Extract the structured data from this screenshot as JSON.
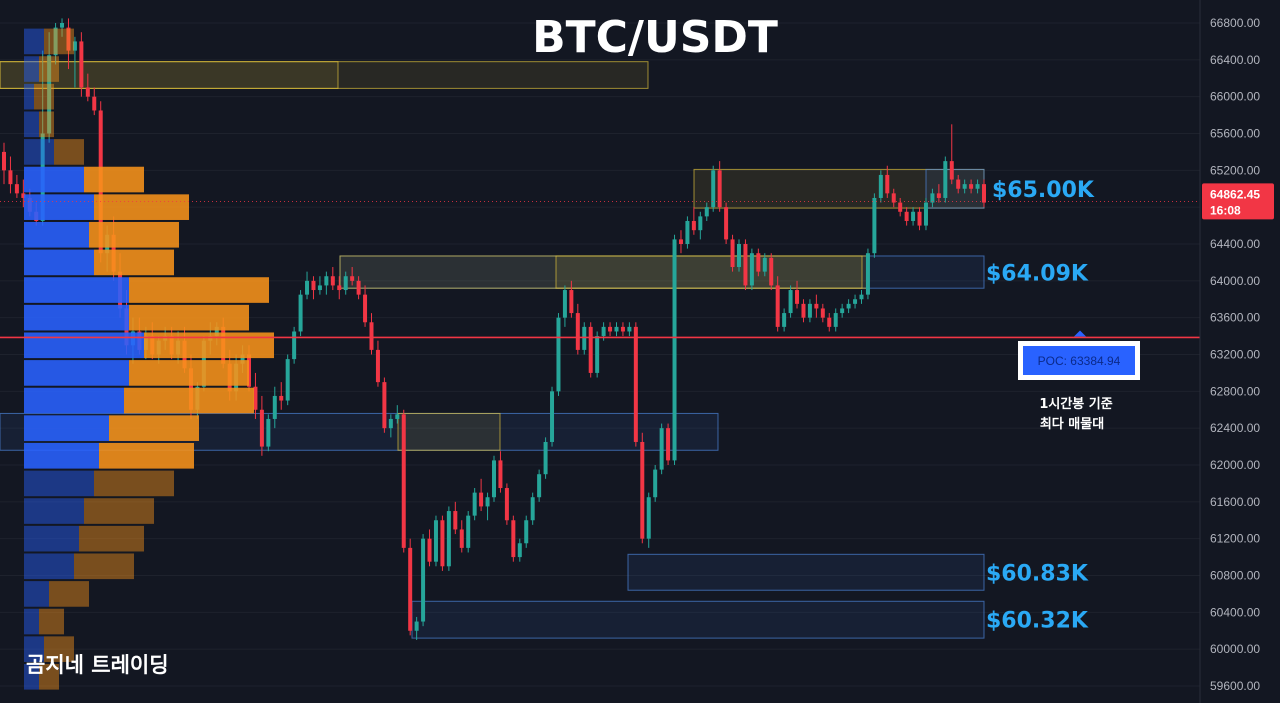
{
  "chart_data": {
    "type": "candlestick",
    "title": "BTC/USDT",
    "brand": "곰지네 트레이딩",
    "yaxis": {
      "ylim": [
        59500,
        66950
      ],
      "ticks": [
        "66800.00",
        "66400.00",
        "66000.00",
        "65600.00",
        "65200.00",
        "64800.00",
        "64400.00",
        "64000.00",
        "63600.00",
        "63200.00",
        "62800.00",
        "62400.00",
        "62000.00",
        "61600.00",
        "61200.00",
        "60800.00",
        "60400.00",
        "60000.00",
        "59600.00"
      ]
    },
    "current_price": {
      "value": "64862.45",
      "countdown": "16:08",
      "color": "#f23645"
    },
    "poc": {
      "label": "POC: 63384.94",
      "value": 63384.94,
      "note_line1": "1시간봉 기준",
      "note_line2": "최다 매물대",
      "line_color": "#f23645"
    },
    "levels": [
      {
        "label": "$65.00K",
        "value": 65000
      },
      {
        "label": "$64.09K",
        "value": 64090
      },
      {
        "label": "$60.83K",
        "value": 60830
      },
      {
        "label": "$60.32K",
        "value": 60320
      }
    ],
    "volume_profile": {
      "bin_size": 300,
      "up_color": "#2962ff",
      "down_color": "#f7931a",
      "bins": [
        {
          "low": 66450,
          "high": 66750,
          "up": 20,
          "down": 30
        },
        {
          "low": 66150,
          "high": 66450,
          "up": 15,
          "down": 20
        },
        {
          "low": 65850,
          "high": 66150,
          "up": 10,
          "down": 20
        },
        {
          "low": 65550,
          "high": 65850,
          "up": 15,
          "down": 15
        },
        {
          "low": 65250,
          "high": 65550,
          "up": 30,
          "down": 30
        },
        {
          "low": 64950,
          "high": 65250,
          "up": 60,
          "down": 60
        },
        {
          "low": 64650,
          "high": 64950,
          "up": 70,
          "down": 95
        },
        {
          "low": 64350,
          "high": 64650,
          "up": 65,
          "down": 90
        },
        {
          "low": 64050,
          "high": 64350,
          "up": 70,
          "down": 80
        },
        {
          "low": 63750,
          "high": 64050,
          "up": 105,
          "down": 140
        },
        {
          "low": 63450,
          "high": 63750,
          "up": 105,
          "down": 120
        },
        {
          "low": 63150,
          "high": 63450,
          "up": 120,
          "down": 130
        },
        {
          "low": 62850,
          "high": 63150,
          "up": 105,
          "down": 120
        },
        {
          "low": 62550,
          "high": 62850,
          "up": 100,
          "down": 130
        },
        {
          "low": 62250,
          "high": 62550,
          "up": 85,
          "down": 90
        },
        {
          "low": 61950,
          "high": 62250,
          "up": 75,
          "down": 95
        },
        {
          "low": 61650,
          "high": 61950,
          "up": 70,
          "down": 80
        },
        {
          "low": 61350,
          "high": 61650,
          "up": 60,
          "down": 70
        },
        {
          "low": 61050,
          "high": 61350,
          "up": 55,
          "down": 65
        },
        {
          "low": 60750,
          "high": 61050,
          "up": 50,
          "down": 60
        },
        {
          "low": 60450,
          "high": 60750,
          "up": 25,
          "down": 40
        },
        {
          "low": 60150,
          "high": 60450,
          "up": 15,
          "down": 25
        },
        {
          "low": 59850,
          "high": 60150,
          "up": 20,
          "down": 30
        },
        {
          "low": 59550,
          "high": 59850,
          "up": 15,
          "down": 20
        }
      ]
    },
    "candles": [
      [
        65400,
        65500,
        65050,
        65200
      ],
      [
        65200,
        65350,
        64950,
        65050
      ],
      [
        65050,
        65150,
        64900,
        64950
      ],
      [
        64950,
        65100,
        64800,
        64900
      ],
      [
        64900,
        65000,
        64700,
        64750
      ],
      [
        64750,
        64850,
        64600,
        64650
      ],
      [
        64650,
        66500,
        64600,
        65600
      ],
      [
        65600,
        66700,
        65500,
        66450
      ],
      [
        66450,
        66800,
        66350,
        66750
      ],
      [
        66750,
        66850,
        66650,
        66800
      ],
      [
        66750,
        66850,
        66300,
        66500
      ],
      [
        66500,
        66650,
        66100,
        66600
      ],
      [
        66600,
        66700,
        66000,
        66100
      ],
      [
        66100,
        66250,
        65950,
        66000
      ],
      [
        66000,
        66100,
        65800,
        65850
      ],
      [
        65850,
        65950,
        64200,
        64300
      ],
      [
        64300,
        64600,
        64100,
        64500
      ],
      [
        64500,
        64700,
        64000,
        64100
      ],
      [
        64100,
        64300,
        63600,
        63700
      ],
      [
        63700,
        63900,
        63200,
        63300
      ],
      [
        63300,
        63600,
        63100,
        63450
      ],
      [
        63450,
        63600,
        63200,
        63250
      ],
      [
        63250,
        63500,
        63150,
        63400
      ],
      [
        63400,
        63550,
        63150,
        63200
      ],
      [
        63200,
        63400,
        63100,
        63350
      ],
      [
        63350,
        63500,
        63250,
        63400
      ],
      [
        63400,
        63500,
        63150,
        63200
      ],
      [
        63200,
        63450,
        63100,
        63350
      ],
      [
        63350,
        63500,
        63000,
        63050
      ],
      [
        63050,
        63200,
        62500,
        62600
      ],
      [
        62600,
        62900,
        62500,
        62850
      ],
      [
        62850,
        63400,
        62800,
        63350
      ],
      [
        63350,
        63550,
        63200,
        63400
      ],
      [
        63400,
        63550,
        63300,
        63500
      ],
      [
        63500,
        63600,
        63050,
        63100
      ],
      [
        63100,
        63250,
        62700,
        62800
      ],
      [
        62800,
        63200,
        62700,
        63100
      ],
      [
        63100,
        63300,
        63000,
        63200
      ],
      [
        63200,
        63300,
        62800,
        62850
      ],
      [
        62850,
        63000,
        62500,
        62600
      ],
      [
        62600,
        62750,
        62100,
        62200
      ],
      [
        62200,
        62550,
        62150,
        62500
      ],
      [
        62500,
        62850,
        62400,
        62750
      ],
      [
        62750,
        62900,
        62600,
        62700
      ],
      [
        62700,
        63200,
        62650,
        63150
      ],
      [
        63150,
        63500,
        63100,
        63450
      ],
      [
        63450,
        63900,
        63400,
        63850
      ],
      [
        63850,
        64100,
        63800,
        64000
      ],
      [
        64000,
        64050,
        63800,
        63900
      ],
      [
        63900,
        64050,
        63850,
        63950
      ],
      [
        63950,
        64100,
        63850,
        64050
      ],
      [
        64050,
        64150,
        63900,
        63950
      ],
      [
        63950,
        64050,
        63800,
        63900
      ],
      [
        63900,
        64100,
        63850,
        64050
      ],
      [
        64050,
        64150,
        63950,
        64000
      ],
      [
        64000,
        64050,
        63800,
        63850
      ],
      [
        63850,
        63950,
        63500,
        63550
      ],
      [
        63550,
        63650,
        63200,
        63250
      ],
      [
        63250,
        63350,
        62850,
        62900
      ],
      [
        62900,
        62950,
        62350,
        62400
      ],
      [
        62400,
        62550,
        62300,
        62500
      ],
      [
        62500,
        62650,
        62450,
        62550
      ],
      [
        62550,
        62600,
        61050,
        61100
      ],
      [
        61100,
        61200,
        60150,
        60200
      ],
      [
        60200,
        60350,
        60100,
        60300
      ],
      [
        60300,
        61250,
        60250,
        61200
      ],
      [
        61200,
        61300,
        60900,
        60950
      ],
      [
        60950,
        61450,
        60900,
        61400
      ],
      [
        61400,
        61450,
        60850,
        60900
      ],
      [
        60900,
        61550,
        60850,
        61500
      ],
      [
        61500,
        61600,
        61250,
        61300
      ],
      [
        61300,
        61400,
        61050,
        61100
      ],
      [
        61100,
        61500,
        61050,
        61450
      ],
      [
        61450,
        61750,
        61400,
        61700
      ],
      [
        61700,
        61850,
        61500,
        61550
      ],
      [
        61550,
        61700,
        61400,
        61650
      ],
      [
        61650,
        62100,
        61600,
        62050
      ],
      [
        62050,
        62150,
        61700,
        61750
      ],
      [
        61750,
        61800,
        61350,
        61400
      ],
      [
        61400,
        61450,
        60950,
        61000
      ],
      [
        61000,
        61200,
        60950,
        61150
      ],
      [
        61150,
        61450,
        61100,
        61400
      ],
      [
        61400,
        61700,
        61350,
        61650
      ],
      [
        61650,
        61950,
        61600,
        61900
      ],
      [
        61900,
        62300,
        61850,
        62250
      ],
      [
        62250,
        62850,
        62200,
        62800
      ],
      [
        62800,
        63650,
        62750,
        63600
      ],
      [
        63600,
        63950,
        63500,
        63900
      ],
      [
        63900,
        64000,
        63600,
        63650
      ],
      [
        63650,
        63750,
        63200,
        63250
      ],
      [
        63250,
        63550,
        63200,
        63500
      ],
      [
        63500,
        63550,
        62950,
        63000
      ],
      [
        63000,
        63450,
        62950,
        63400
      ],
      [
        63400,
        63550,
        63350,
        63500
      ],
      [
        63500,
        63550,
        63400,
        63450
      ],
      [
        63450,
        63550,
        63400,
        63500
      ],
      [
        63500,
        63550,
        63400,
        63450
      ],
      [
        63450,
        63550,
        63400,
        63500
      ],
      [
        63500,
        63550,
        62200,
        62250
      ],
      [
        62250,
        62350,
        61150,
        61200
      ],
      [
        61200,
        61700,
        61100,
        61650
      ],
      [
        61650,
        62000,
        61600,
        61950
      ],
      [
        61950,
        62450,
        61900,
        62400
      ],
      [
        62400,
        62450,
        62000,
        62050
      ],
      [
        62050,
        64500,
        62000,
        64450
      ],
      [
        64450,
        64550,
        64300,
        64400
      ],
      [
        64400,
        64700,
        64350,
        64650
      ],
      [
        64650,
        64800,
        64500,
        64550
      ],
      [
        64550,
        64750,
        64450,
        64700
      ],
      [
        64700,
        64850,
        64650,
        64800
      ],
      [
        64800,
        65250,
        64750,
        65200
      ],
      [
        65200,
        65300,
        64750,
        64800
      ],
      [
        64800,
        64850,
        64400,
        64450
      ],
      [
        64450,
        64500,
        64100,
        64150
      ],
      [
        64150,
        64450,
        64100,
        64400
      ],
      [
        64400,
        64450,
        63900,
        63950
      ],
      [
        63950,
        64350,
        63900,
        64300
      ],
      [
        64300,
        64350,
        64050,
        64100
      ],
      [
        64100,
        64300,
        64050,
        64250
      ],
      [
        64250,
        64300,
        63900,
        63950
      ],
      [
        63950,
        64050,
        63450,
        63500
      ],
      [
        63500,
        63700,
        63450,
        63650
      ],
      [
        63650,
        63950,
        63600,
        63900
      ],
      [
        63900,
        64000,
        63700,
        63750
      ],
      [
        63750,
        63800,
        63550,
        63600
      ],
      [
        63600,
        63800,
        63550,
        63750
      ],
      [
        63750,
        63850,
        63600,
        63700
      ],
      [
        63700,
        63750,
        63550,
        63600
      ],
      [
        63600,
        63650,
        63450,
        63500
      ],
      [
        63500,
        63700,
        63450,
        63650
      ],
      [
        63650,
        63750,
        63600,
        63700
      ],
      [
        63700,
        63800,
        63650,
        63750
      ],
      [
        63750,
        63850,
        63700,
        63800
      ],
      [
        63800,
        63900,
        63750,
        63850
      ],
      [
        63850,
        64350,
        63800,
        64300
      ],
      [
        64300,
        64950,
        64250,
        64900
      ],
      [
        64900,
        65200,
        64850,
        65150
      ],
      [
        65150,
        65250,
        64900,
        64950
      ],
      [
        64950,
        65000,
        64800,
        64850
      ],
      [
        64850,
        64900,
        64700,
        64750
      ],
      [
        64750,
        64800,
        64600,
        64650
      ],
      [
        64650,
        64800,
        64600,
        64750
      ],
      [
        64750,
        64800,
        64550,
        64600
      ],
      [
        64600,
        64900,
        64550,
        64850
      ],
      [
        64850,
        65000,
        64800,
        64950
      ],
      [
        64950,
        65050,
        64850,
        64900
      ],
      [
        64900,
        65350,
        64850,
        65300
      ],
      [
        65300,
        65700,
        65050,
        65100
      ],
      [
        65100,
        65150,
        64950,
        65000
      ],
      [
        65000,
        65100,
        64950,
        65050
      ],
      [
        65050,
        65100,
        64950,
        65000
      ],
      [
        65000,
        65100,
        64950,
        65050
      ],
      [
        65050,
        65100,
        64800,
        64850
      ]
    ]
  }
}
